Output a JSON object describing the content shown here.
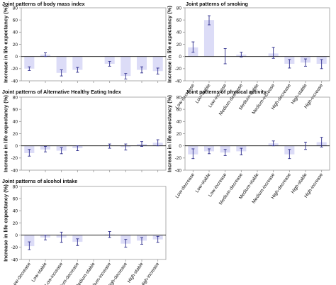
{
  "colors": {
    "bar": "#dcdcf7",
    "error_bar": "#2c2c8c",
    "frame": "#9a9a9a",
    "zero_line": "#000000",
    "text": "#111111"
  },
  "shared": {
    "ylabel": "Increase in life expectancy (%)",
    "categories": [
      "Low-decrease",
      "Low-stable",
      "Low-increase",
      "Medium-decrease",
      "Medium-stable",
      "Medium-increase",
      "High-decrease",
      "High-stable",
      "High-increase"
    ]
  },
  "chart_data": [
    {
      "type": "bar",
      "title": "Joint patterns of body mass index",
      "ylim": [
        -40,
        80
      ],
      "yticks": [
        -40,
        -20,
        0,
        20,
        40,
        60,
        80
      ],
      "categories": [
        "Low-decrease",
        "Low-stable",
        "Low-increase",
        "Medium-decrease",
        "Medium-stable",
        "Medium-increase",
        "High-decrease",
        "High-stable",
        "High-increase"
      ],
      "values": [
        -20,
        3,
        -27,
        -22,
        null,
        -12,
        -32,
        -22,
        -24
      ],
      "errors": [
        [
          -23,
          -17
        ],
        [
          0,
          6
        ],
        [
          -32,
          -22
        ],
        [
          -26,
          -18
        ],
        null,
        [
          -16,
          -8
        ],
        [
          -37,
          -28
        ],
        [
          -27,
          -17
        ],
        [
          -29,
          -19
        ]
      ],
      "show_xticklabels": false
    },
    {
      "type": "bar",
      "title": "Joint patterns of smoking",
      "ylim": [
        -40,
        80
      ],
      "yticks": [
        -40,
        -20,
        0,
        20,
        40,
        60,
        80
      ],
      "categories": [
        "Low-decrease",
        "Low-stable",
        "Low-increase",
        "Medium-decrease",
        "Medium-stable",
        "Medium-increase",
        "High-decrease",
        "High-stable",
        "High-increase"
      ],
      "values": [
        15,
        60,
        0,
        3,
        null,
        5,
        -12,
        -10,
        -12
      ],
      "errors": [
        [
          7,
          24
        ],
        [
          52,
          67
        ],
        [
          -12,
          13
        ],
        [
          -1,
          7
        ],
        null,
        [
          -3,
          15
        ],
        [
          -19,
          -5
        ],
        [
          -16,
          -4
        ],
        [
          -20,
          -5
        ]
      ],
      "show_xticklabels": true
    },
    {
      "type": "bar",
      "title": "Joint patterns of Alternative Healthy Eating Index",
      "ylim": [
        -40,
        80
      ],
      "yticks": [
        -40,
        -20,
        0,
        20,
        40,
        60,
        80
      ],
      "categories": [
        "Low-decrease",
        "Low-stable",
        "Low-increase",
        "Medium-decrease",
        "Medium-stable",
        "Medium-increase",
        "High-decrease",
        "High-stable",
        "High-increase"
      ],
      "values": [
        -12,
        -6,
        -8,
        -4,
        null,
        0,
        -2,
        3,
        5
      ],
      "errors": [
        [
          -17,
          -6
        ],
        [
          -10,
          -1
        ],
        [
          -13,
          -3
        ],
        [
          -8,
          0
        ],
        null,
        [
          -4,
          3
        ],
        [
          -7,
          3
        ],
        [
          -1,
          7
        ],
        [
          0,
          10
        ]
      ],
      "show_xticklabels": false
    },
    {
      "type": "bar",
      "title": "Joint patterns of physical activity",
      "ylim": [
        -40,
        80
      ],
      "yticks": [
        -40,
        -20,
        0,
        20,
        40,
        60,
        80
      ],
      "categories": [
        "Low-decrease",
        "Low-stable",
        "Low-increase",
        "Medium-decrease",
        "Medium-stable",
        "Medium-increase",
        "High-decrease",
        "High-stable",
        "High-increase"
      ],
      "values": [
        -14,
        -9,
        -11,
        -9,
        null,
        4,
        -14,
        0,
        6
      ],
      "errors": [
        [
          -21,
          -5
        ],
        [
          -13,
          -5
        ],
        [
          -16,
          -6
        ],
        [
          -15,
          -4
        ],
        null,
        [
          0,
          8
        ],
        [
          -21,
          -6
        ],
        [
          -6,
          6
        ],
        [
          -2,
          14
        ]
      ],
      "show_xticklabels": true
    },
    {
      "type": "bar",
      "title": "Joint patterns of alcohol intake",
      "ylim": [
        -40,
        80
      ],
      "yticks": [
        -40,
        -20,
        0,
        20,
        40,
        60,
        80
      ],
      "categories": [
        "Low-decrease",
        "Low-stable",
        "Low-increase",
        "Medium-decrease",
        "Medium-stable",
        "Medium-increase",
        "High-decrease",
        "High-stable",
        "High-increase"
      ],
      "values": [
        -18,
        -4,
        -4,
        -11,
        null,
        1,
        -14,
        -9,
        -7
      ],
      "errors": [
        [
          -24,
          -11
        ],
        [
          -8,
          0
        ],
        [
          -12,
          5
        ],
        [
          -17,
          -6
        ],
        null,
        [
          -4,
          6
        ],
        [
          -20,
          -7
        ],
        [
          -15,
          -4
        ],
        [
          -12,
          -2
        ]
      ],
      "show_xticklabels": true
    }
  ]
}
